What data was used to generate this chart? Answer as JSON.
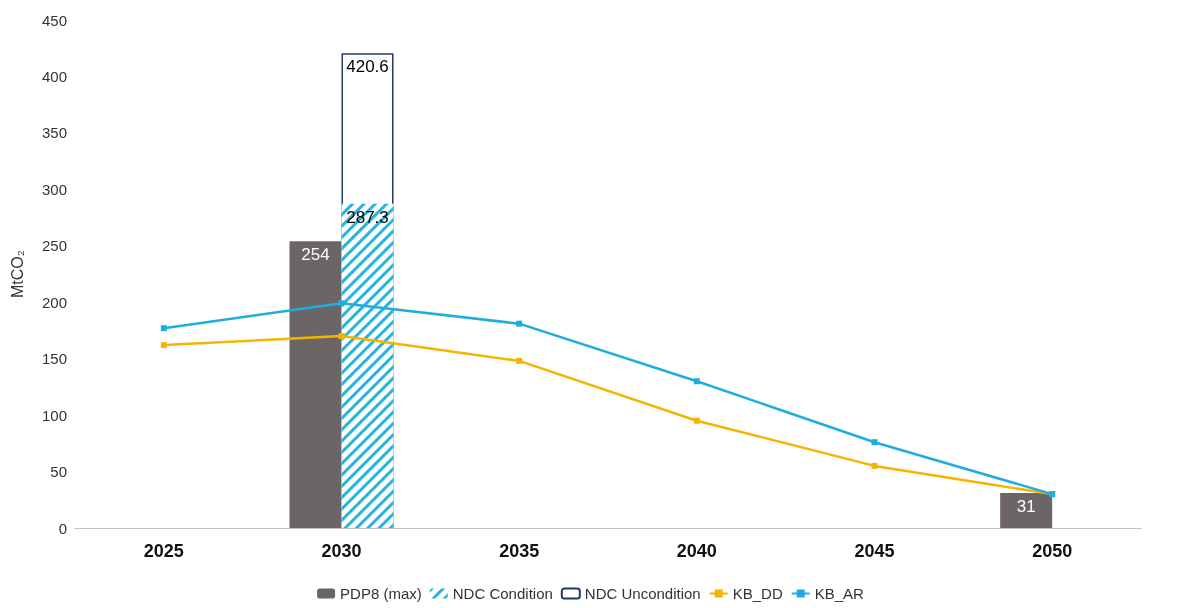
{
  "chart_data": {
    "type": "bar",
    "ylabel": "MtCO₂",
    "categories": [
      "2025",
      "2030",
      "2035",
      "2040",
      "2045",
      "2050"
    ],
    "ylim": [
      0,
      450
    ],
    "yticks": [
      0,
      50,
      100,
      150,
      200,
      250,
      300,
      350,
      400,
      450
    ],
    "grid": false,
    "legend": "bottom",
    "marker": "square",
    "series": [
      {
        "name": "PDP8 (max)",
        "color": "#6b6565",
        "values": [
          null,
          254,
          null,
          null,
          null,
          31
        ],
        "value_labels": [
          null,
          "254",
          null,
          null,
          null,
          "31"
        ]
      },
      {
        "name": "NDC Condition",
        "color": "#29b4df",
        "values": [
          null,
          287.3,
          null,
          null,
          null,
          null
        ],
        "value_labels": [
          null,
          "287.3",
          null,
          null,
          null,
          null
        ]
      },
      {
        "name": "NDC Uncondition",
        "color": "#203864",
        "values": [
          null,
          420.6,
          null,
          null,
          null,
          null
        ],
        "value_labels": [
          null,
          "420.6",
          null,
          null,
          null,
          null
        ]
      },
      {
        "name": "KB_DD",
        "type": "line",
        "color": "#f5b400",
        "values": [
          162,
          170,
          148,
          95,
          55,
          30
        ]
      },
      {
        "name": "KB_AR",
        "type": "line",
        "color": "#1eade0",
        "values": [
          177,
          199,
          181,
          130,
          76,
          30
        ]
      }
    ]
  }
}
